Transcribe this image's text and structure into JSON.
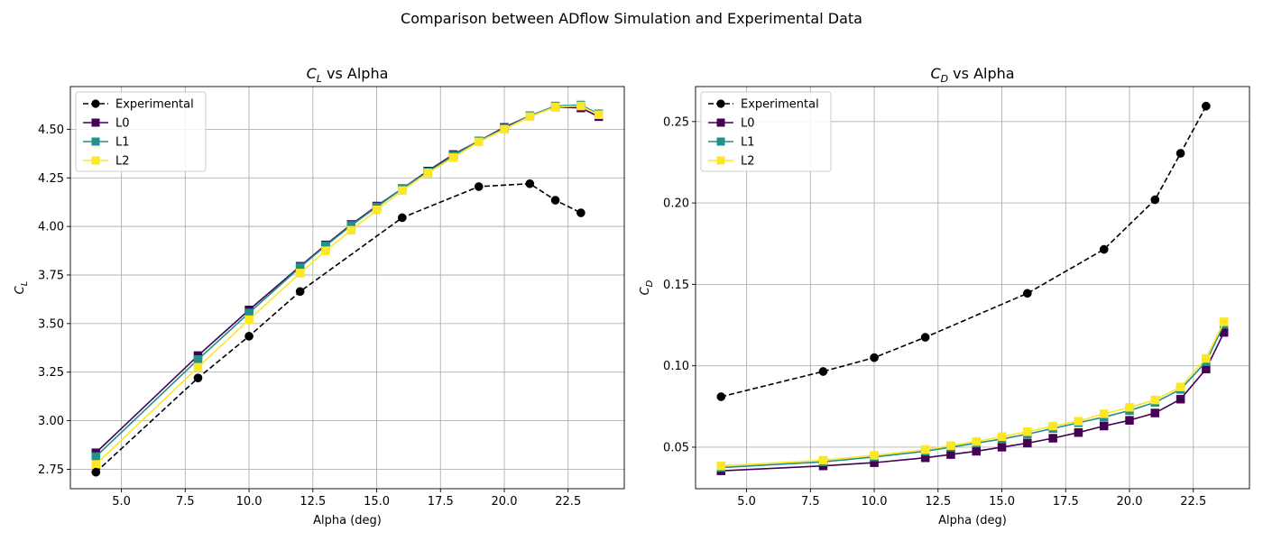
{
  "figure": {
    "suptitle": "Comparison between ADflow Simulation and Experimental Data"
  },
  "chart_data": [
    {
      "type": "line",
      "title": "C_L vs Alpha",
      "title_main": "C",
      "title_sub": "L",
      "title_rest": " vs Alpha",
      "xlabel": "Alpha (deg)",
      "ylabel_main": "C",
      "ylabel_sub": "L",
      "xlim": [
        3.0,
        24.7
      ],
      "ylim": [
        2.65,
        4.72
      ],
      "xticks": [
        5.0,
        7.5,
        10.0,
        12.5,
        15.0,
        17.5,
        20.0,
        22.5
      ],
      "xtick_labels": [
        "5.0",
        "7.5",
        "10.0",
        "12.5",
        "15.0",
        "17.5",
        "20.0",
        "22.5"
      ],
      "yticks": [
        2.75,
        3.0,
        3.25,
        3.5,
        3.75,
        4.0,
        4.25,
        4.5
      ],
      "ytick_labels": [
        "2.75",
        "3.00",
        "3.25",
        "3.50",
        "3.75",
        "4.00",
        "4.25",
        "4.50"
      ],
      "grid": true,
      "legend": "top-left",
      "series": [
        {
          "name": "L0",
          "color": "#440154",
          "marker": "square",
          "dashed": false,
          "x": [
            4,
            8,
            10,
            12,
            13,
            14,
            15,
            16,
            17,
            18,
            19,
            20,
            21,
            22,
            23,
            23.7
          ],
          "y": [
            2.835,
            3.335,
            3.57,
            3.795,
            3.905,
            4.01,
            4.105,
            4.195,
            4.285,
            4.37,
            4.44,
            4.51,
            4.57,
            4.615,
            4.61,
            4.565
          ]
        },
        {
          "name": "L1",
          "color": "#21918c",
          "marker": "square",
          "dashed": false,
          "x": [
            4,
            8,
            10,
            12,
            13,
            14,
            15,
            16,
            17,
            18,
            19,
            20,
            21,
            22,
            23,
            23.7
          ],
          "y": [
            2.815,
            3.315,
            3.555,
            3.79,
            3.9,
            4.005,
            4.1,
            4.195,
            4.28,
            4.365,
            4.44,
            4.505,
            4.57,
            4.62,
            4.625,
            4.58
          ]
        },
        {
          "name": "L2",
          "color": "#fde725",
          "marker": "square",
          "dashed": false,
          "x": [
            4,
            8,
            10,
            12,
            13,
            14,
            15,
            16,
            17,
            18,
            19,
            20,
            21,
            22,
            23,
            23.7
          ],
          "y": [
            2.775,
            3.275,
            3.52,
            3.76,
            3.875,
            3.98,
            4.085,
            4.185,
            4.275,
            4.355,
            4.435,
            4.5,
            4.565,
            4.615,
            4.62,
            4.575
          ]
        },
        {
          "name": "Experimental",
          "color": "#000000",
          "marker": "circle",
          "dashed": true,
          "x": [
            4,
            8,
            10,
            12,
            16,
            19,
            21,
            22,
            23
          ],
          "y": [
            2.735,
            3.22,
            3.435,
            3.665,
            4.045,
            4.205,
            4.22,
            4.135,
            4.07
          ]
        }
      ],
      "legend_order": [
        "Experimental",
        "L0",
        "L1",
        "L2"
      ]
    },
    {
      "type": "line",
      "title": "C_D vs Alpha",
      "title_main": "C",
      "title_sub": "D",
      "title_rest": " vs Alpha",
      "xlabel": "Alpha (deg)",
      "ylabel_main": "C",
      "ylabel_sub": "D",
      "xlim": [
        3.0,
        24.7
      ],
      "ylim": [
        0.0245,
        0.2715
      ],
      "xticks": [
        5.0,
        7.5,
        10.0,
        12.5,
        15.0,
        17.5,
        20.0,
        22.5
      ],
      "xtick_labels": [
        "5.0",
        "7.5",
        "10.0",
        "12.5",
        "15.0",
        "17.5",
        "20.0",
        "22.5"
      ],
      "yticks": [
        0.05,
        0.1,
        0.15,
        0.2,
        0.25
      ],
      "ytick_labels": [
        "0.05",
        "0.10",
        "0.15",
        "0.20",
        "0.25"
      ],
      "grid": true,
      "legend": "top-left",
      "series": [
        {
          "name": "L0",
          "color": "#440154",
          "marker": "square",
          "dashed": false,
          "x": [
            4,
            8,
            10,
            12,
            13,
            14,
            15,
            16,
            17,
            18,
            19,
            20,
            21,
            22,
            23,
            23.7
          ],
          "y": [
            0.0355,
            0.0385,
            0.0405,
            0.0435,
            0.0455,
            0.0475,
            0.05,
            0.0525,
            0.0555,
            0.059,
            0.063,
            0.0665,
            0.071,
            0.0795,
            0.098,
            0.1205
          ]
        },
        {
          "name": "L1",
          "color": "#21918c",
          "marker": "square",
          "dashed": false,
          "x": [
            4,
            8,
            10,
            12,
            13,
            14,
            15,
            16,
            17,
            18,
            19,
            20,
            21,
            22,
            23,
            23.7
          ],
          "y": [
            0.0375,
            0.041,
            0.044,
            0.0475,
            0.05,
            0.0525,
            0.055,
            0.058,
            0.0615,
            0.065,
            0.0685,
            0.0725,
            0.0775,
            0.0855,
            0.1025,
            0.1255
          ]
        },
        {
          "name": "L2",
          "color": "#fde725",
          "marker": "square",
          "dashed": false,
          "x": [
            4,
            8,
            10,
            12,
            13,
            14,
            15,
            16,
            17,
            18,
            19,
            20,
            21,
            22,
            23,
            23.7
          ],
          "y": [
            0.0385,
            0.042,
            0.045,
            0.0485,
            0.051,
            0.0535,
            0.0565,
            0.0595,
            0.063,
            0.066,
            0.0705,
            0.0745,
            0.079,
            0.087,
            0.1045,
            0.127
          ]
        },
        {
          "name": "Experimental",
          "color": "#000000",
          "marker": "circle",
          "dashed": true,
          "x": [
            4,
            8,
            10,
            12,
            16,
            19,
            21,
            22,
            23
          ],
          "y": [
            0.081,
            0.0965,
            0.105,
            0.1175,
            0.1445,
            0.1715,
            0.202,
            0.2305,
            0.2595
          ]
        }
      ],
      "legend_order": [
        "Experimental",
        "L0",
        "L1",
        "L2"
      ]
    }
  ]
}
